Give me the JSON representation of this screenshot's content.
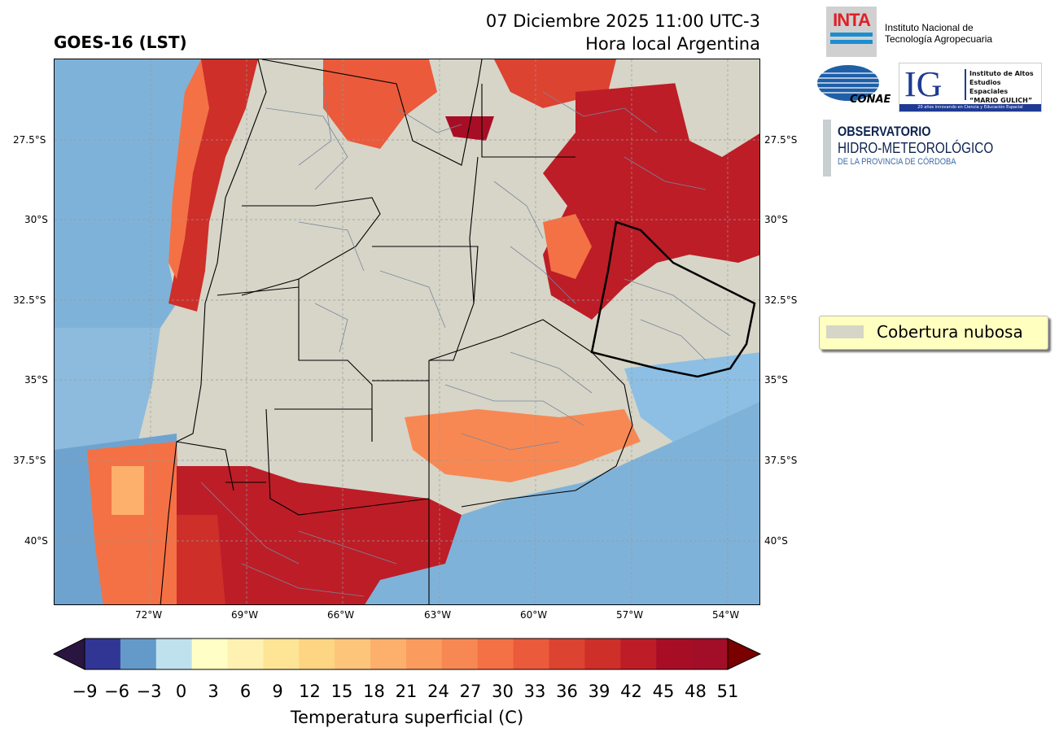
{
  "header": {
    "title_left": "GOES-16 (LST)",
    "date_line": "07 Diciembre 2025 11:00 UTC-3",
    "subtitle": "Hora local Argentina"
  },
  "map": {
    "lat_labels": [
      "27.5°S",
      "30°S",
      "32.5°S",
      "35°S",
      "37.5°S",
      "40°S"
    ],
    "lon_labels": [
      "72°W",
      "69°W",
      "66°W",
      "63°W",
      "60°W",
      "57°W",
      "54°W"
    ],
    "cloud_color": "#d6d5c8",
    "ocean_color": "#7fb2d9"
  },
  "legend": {
    "cloud_label": "Cobertura nubosa"
  },
  "colorbar": {
    "label": "Temperatura superficial (C)",
    "ticks": [
      "−9",
      "−6",
      "−3",
      "0",
      "3",
      "6",
      "9",
      "12",
      "15",
      "18",
      "21",
      "24",
      "27",
      "30",
      "33",
      "36",
      "39",
      "42",
      "45",
      "48",
      "51"
    ],
    "colors": [
      "#313695",
      "#649ac9",
      "#bfe1ee",
      "#ffffc5",
      "#fff1b1",
      "#fee596",
      "#fed583",
      "#fdc57a",
      "#fdb06b",
      "#fb9b5d",
      "#f88853",
      "#f47145",
      "#ea5a3b",
      "#dc4331",
      "#ce2f29",
      "#bd1d27",
      "#a80d26",
      "#a20e28"
    ],
    "under_color": "#2a1540",
    "over_color": "#7a0000"
  },
  "logos": {
    "inta_mark": "INTA",
    "inta_name_1": "Instituto Nacional de",
    "inta_name_2": "Tecnología Agropecuaria",
    "conae_mark": "CONAE",
    "ig_mark": "IG",
    "ig_line_1": "Instituto de Altos",
    "ig_line_2": "Estudios Espaciales",
    "ig_line_3": "“MARIO GULICH”",
    "ig_footer": "20 años innovando en Ciencia y Educación Espacial",
    "obs_line_1": "OBSERVATORIO",
    "obs_line_2": "HIDRO-METEOROLÓGICO",
    "obs_line_3": "DE LA PROVINCIA DE CÓRDOBA"
  }
}
